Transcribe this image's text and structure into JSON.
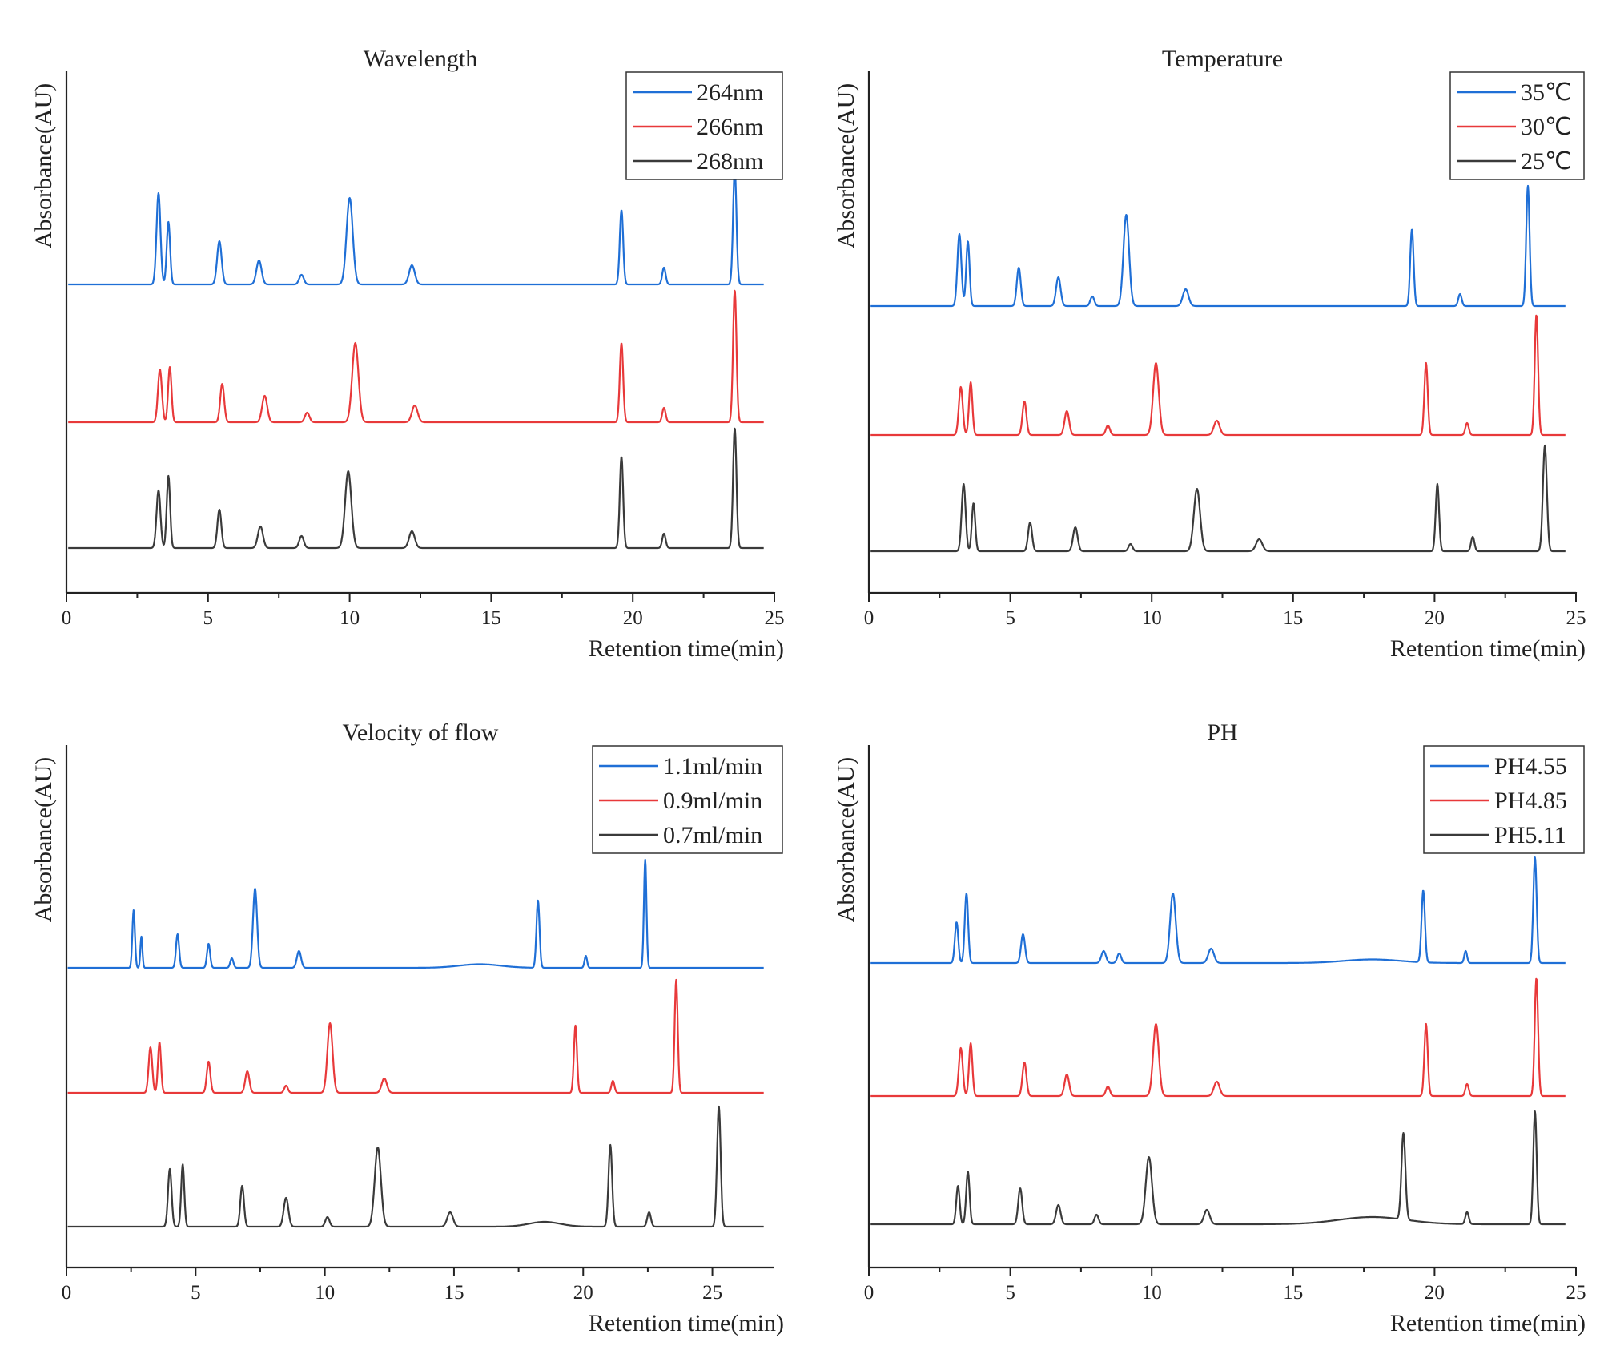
{
  "colors": {
    "blue": "#1f6fd6",
    "red": "#e8393a",
    "black": "#3a3a3a",
    "axis": "#222222"
  },
  "chart_data": [
    {
      "type": "line",
      "title": "Wavelength",
      "xlabel": "Retention time(min)",
      "ylabel": "Absorbance(AU)",
      "xlim": [
        0,
        25
      ],
      "x_ticks": [
        "0",
        "5",
        "10",
        "15",
        "20",
        "25"
      ],
      "legend_position": "top-right",
      "grid": false,
      "y_scale": "stacked offset, no y tick labels",
      "series": [
        {
          "name": "264nm",
          "color": "#1f6fd6",
          "baseline": 0.18,
          "peaks": [
            [
              3.25,
              0.38,
              0.07
            ],
            [
              3.6,
              0.26,
              0.06
            ],
            [
              5.4,
              0.18,
              0.08
            ],
            [
              6.8,
              0.1,
              0.09
            ],
            [
              8.3,
              0.04,
              0.08
            ],
            [
              10.0,
              0.36,
              0.11
            ],
            [
              12.2,
              0.08,
              0.1
            ],
            [
              19.6,
              0.31,
              0.06
            ],
            [
              21.1,
              0.07,
              0.06
            ],
            [
              23.6,
              0.48,
              0.06
            ]
          ]
        },
        {
          "name": "266nm",
          "color": "#e8393a",
          "baseline": 0.18,
          "peaks": [
            [
              3.3,
              0.22,
              0.07
            ],
            [
              3.65,
              0.23,
              0.06
            ],
            [
              5.5,
              0.16,
              0.07
            ],
            [
              7.0,
              0.11,
              0.09
            ],
            [
              8.5,
              0.04,
              0.08
            ],
            [
              10.2,
              0.33,
              0.11
            ],
            [
              12.3,
              0.07,
              0.1
            ],
            [
              19.6,
              0.33,
              0.06
            ],
            [
              21.1,
              0.06,
              0.06
            ],
            [
              23.6,
              0.55,
              0.06
            ]
          ]
        },
        {
          "name": "268nm",
          "color": "#3a3a3a",
          "baseline": 0.18,
          "peaks": [
            [
              3.25,
              0.24,
              0.07
            ],
            [
              3.6,
              0.3,
              0.06
            ],
            [
              5.4,
              0.16,
              0.07
            ],
            [
              6.85,
              0.09,
              0.09
            ],
            [
              8.3,
              0.05,
              0.08
            ],
            [
              9.95,
              0.32,
              0.11
            ],
            [
              12.2,
              0.07,
              0.1
            ],
            [
              19.6,
              0.38,
              0.06
            ],
            [
              21.1,
              0.06,
              0.06
            ],
            [
              23.6,
              0.5,
              0.06
            ]
          ]
        }
      ]
    },
    {
      "type": "line",
      "title": "Temperature",
      "xlabel": "Retention time(min)",
      "ylabel": "Absorbance(AU)",
      "xlim": [
        0,
        25
      ],
      "x_ticks": [
        "0",
        "5",
        "10",
        "15",
        "20",
        "25"
      ],
      "legend_position": "top-right",
      "grid": false,
      "y_scale": "stacked offset, no y tick labels",
      "series": [
        {
          "name": "35℃",
          "color": "#1f6fd6",
          "baseline": 0.16,
          "peaks": [
            [
              3.2,
              0.3,
              0.07
            ],
            [
              3.5,
              0.27,
              0.06
            ],
            [
              5.3,
              0.16,
              0.07
            ],
            [
              6.7,
              0.12,
              0.08
            ],
            [
              7.9,
              0.04,
              0.07
            ],
            [
              9.1,
              0.38,
              0.1
            ],
            [
              11.2,
              0.07,
              0.1
            ],
            [
              19.2,
              0.32,
              0.06
            ],
            [
              20.9,
              0.05,
              0.06
            ],
            [
              23.3,
              0.5,
              0.06
            ]
          ]
        },
        {
          "name": "30℃",
          "color": "#e8393a",
          "baseline": 0.16,
          "peaks": [
            [
              3.25,
              0.2,
              0.07
            ],
            [
              3.6,
              0.22,
              0.06
            ],
            [
              5.5,
              0.14,
              0.07
            ],
            [
              7.0,
              0.1,
              0.08
            ],
            [
              8.45,
              0.04,
              0.07
            ],
            [
              10.15,
              0.3,
              0.1
            ],
            [
              12.3,
              0.06,
              0.1
            ],
            [
              19.7,
              0.3,
              0.06
            ],
            [
              21.15,
              0.05,
              0.06
            ],
            [
              23.6,
              0.5,
              0.06
            ]
          ]
        },
        {
          "name": "25℃",
          "color": "#3a3a3a",
          "baseline": 0.16,
          "peaks": [
            [
              3.35,
              0.28,
              0.07
            ],
            [
              3.7,
              0.2,
              0.06
            ],
            [
              5.7,
              0.12,
              0.07
            ],
            [
              7.3,
              0.1,
              0.08
            ],
            [
              9.25,
              0.03,
              0.07
            ],
            [
              11.6,
              0.26,
              0.11
            ],
            [
              13.8,
              0.05,
              0.11
            ],
            [
              20.1,
              0.28,
              0.06
            ],
            [
              21.35,
              0.06,
              0.06
            ],
            [
              23.9,
              0.44,
              0.07
            ]
          ]
        }
      ]
    },
    {
      "type": "line",
      "title": "Velocity of flow",
      "xlabel": "Retention time(min)",
      "ylabel": "Absorbance(AU)",
      "xlim": [
        0,
        27.4
      ],
      "x_ticks": [
        "0",
        "5",
        "10",
        "15",
        "20",
        "25"
      ],
      "legend_position": "top-right",
      "grid": false,
      "y_scale": "stacked offset, no y tick labels",
      "series": [
        {
          "name": "1.1ml/min",
          "color": "#1f6fd6",
          "baseline": 0.16,
          "peaks": [
            [
              2.6,
              0.24,
              0.05
            ],
            [
              2.9,
              0.13,
              0.04
            ],
            [
              4.3,
              0.14,
              0.06
            ],
            [
              5.5,
              0.1,
              0.06
            ],
            [
              6.4,
              0.04,
              0.06
            ],
            [
              7.3,
              0.33,
              0.08
            ],
            [
              9.0,
              0.07,
              0.08
            ],
            [
              16.0,
              0.015,
              0.8
            ],
            [
              18.25,
              0.28,
              0.06
            ],
            [
              20.1,
              0.05,
              0.05
            ],
            [
              22.4,
              0.45,
              0.05
            ]
          ]
        },
        {
          "name": "0.9ml/min",
          "color": "#e8393a",
          "baseline": 0.16,
          "peaks": [
            [
              3.25,
              0.19,
              0.07
            ],
            [
              3.6,
              0.21,
              0.06
            ],
            [
              5.5,
              0.13,
              0.07
            ],
            [
              7.0,
              0.09,
              0.08
            ],
            [
              8.5,
              0.03,
              0.07
            ],
            [
              10.2,
              0.29,
              0.1
            ],
            [
              12.3,
              0.06,
              0.1
            ],
            [
              19.7,
              0.28,
              0.06
            ],
            [
              21.15,
              0.05,
              0.06
            ],
            [
              23.6,
              0.47,
              0.06
            ]
          ]
        },
        {
          "name": "0.7ml/min",
          "color": "#3a3a3a",
          "baseline": 0.16,
          "peaks": [
            [
              4.0,
              0.24,
              0.07
            ],
            [
              4.5,
              0.26,
              0.06
            ],
            [
              6.8,
              0.17,
              0.07
            ],
            [
              8.5,
              0.12,
              0.09
            ],
            [
              10.1,
              0.04,
              0.08
            ],
            [
              12.05,
              0.33,
              0.12
            ],
            [
              14.85,
              0.06,
              0.11
            ],
            [
              18.5,
              0.02,
              0.6
            ],
            [
              21.05,
              0.34,
              0.07
            ],
            [
              22.55,
              0.06,
              0.07
            ],
            [
              25.25,
              0.5,
              0.07
            ]
          ]
        }
      ]
    },
    {
      "type": "line",
      "title": "PH",
      "xlabel": "Retention time(min)",
      "ylabel": "Absorbance(AU)",
      "xlim": [
        0,
        25
      ],
      "x_ticks": [
        "0",
        "5",
        "10",
        "15",
        "20",
        "25"
      ],
      "legend_position": "top-right",
      "grid": false,
      "y_scale": "stacked offset, no y tick labels",
      "series": [
        {
          "name": "PH4.55",
          "color": "#1f6fd6",
          "baseline": 0.16,
          "peaks": [
            [
              3.1,
              0.17,
              0.06
            ],
            [
              3.45,
              0.29,
              0.06
            ],
            [
              5.45,
              0.12,
              0.07
            ],
            [
              8.3,
              0.05,
              0.08
            ],
            [
              8.85,
              0.04,
              0.07
            ],
            [
              10.75,
              0.29,
              0.1
            ],
            [
              12.1,
              0.06,
              0.1
            ],
            [
              17.8,
              0.015,
              1.0
            ],
            [
              19.6,
              0.3,
              0.06
            ],
            [
              21.1,
              0.05,
              0.05
            ],
            [
              23.55,
              0.44,
              0.06
            ]
          ]
        },
        {
          "name": "PH4.85",
          "color": "#e8393a",
          "baseline": 0.16,
          "peaks": [
            [
              3.25,
              0.2,
              0.07
            ],
            [
              3.6,
              0.22,
              0.06
            ],
            [
              5.5,
              0.14,
              0.07
            ],
            [
              7.0,
              0.09,
              0.08
            ],
            [
              8.45,
              0.04,
              0.07
            ],
            [
              10.15,
              0.3,
              0.1
            ],
            [
              12.3,
              0.06,
              0.1
            ],
            [
              19.7,
              0.3,
              0.06
            ],
            [
              21.15,
              0.05,
              0.06
            ],
            [
              23.6,
              0.49,
              0.06
            ]
          ]
        },
        {
          "name": "PH5.11",
          "color": "#3a3a3a",
          "baseline": 0.16,
          "peaks": [
            [
              3.15,
              0.16,
              0.06
            ],
            [
              3.5,
              0.22,
              0.06
            ],
            [
              5.35,
              0.15,
              0.07
            ],
            [
              6.7,
              0.08,
              0.08
            ],
            [
              8.05,
              0.04,
              0.07
            ],
            [
              9.9,
              0.28,
              0.11
            ],
            [
              11.95,
              0.06,
              0.1
            ],
            [
              17.8,
              0.03,
              1.2
            ],
            [
              18.9,
              0.36,
              0.07
            ],
            [
              21.15,
              0.05,
              0.06
            ],
            [
              23.55,
              0.47,
              0.06
            ]
          ]
        }
      ]
    }
  ]
}
